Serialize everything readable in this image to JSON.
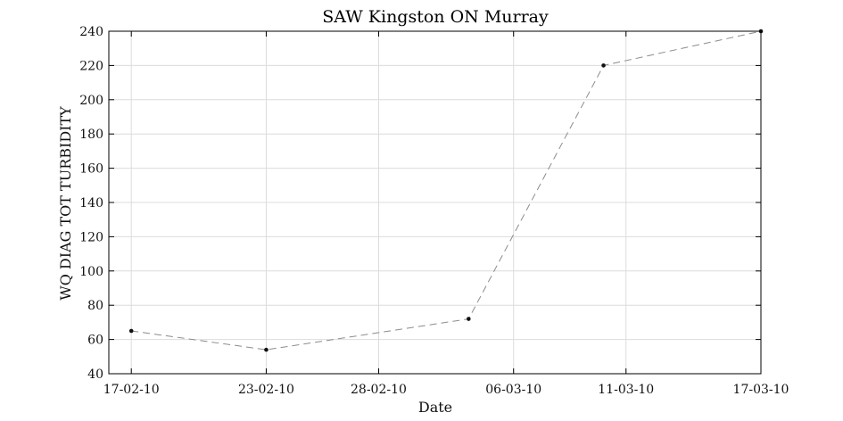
{
  "chart_data": {
    "type": "line",
    "title": "SAW Kingston ON Murray",
    "xlabel": "Date",
    "ylabel": "WQ DIAG TOT TURBIDITY",
    "x_ticks": [
      "17-02-10",
      "23-02-10",
      "28-02-10",
      "06-03-10",
      "11-03-10",
      "17-03-10"
    ],
    "xlim": [
      "2010-02-16",
      "2010-03-17"
    ],
    "ylim": [
      40,
      240
    ],
    "y_ticks": [
      40,
      60,
      80,
      100,
      120,
      140,
      160,
      180,
      200,
      220,
      240
    ],
    "grid": true,
    "series": [
      {
        "color": "#8c8c8c",
        "marker_color": "#111111",
        "points": [
          {
            "x": "2010-02-17",
            "y": 65
          },
          {
            "x": "2010-02-23",
            "y": 54
          },
          {
            "x": "2010-03-04",
            "y": 72
          },
          {
            "x": "2010-03-10",
            "y": 220
          },
          {
            "x": "2010-03-17",
            "y": 240
          }
        ]
      }
    ]
  }
}
